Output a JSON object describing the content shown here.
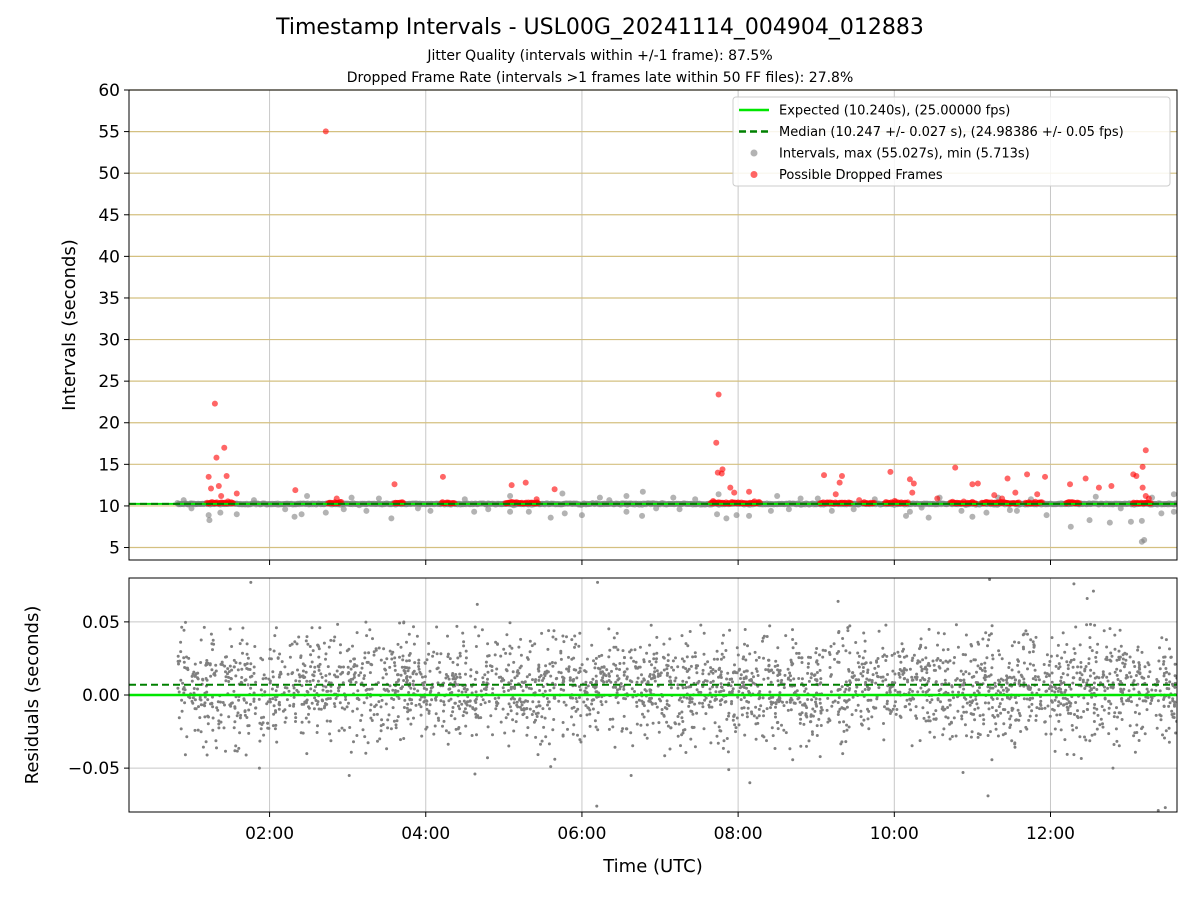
{
  "figure": {
    "title": "Timestamp Intervals - USL00G_20241114_004904_012883",
    "subtitle1": "Jitter Quality (intervals within +/-1 frame): 87.5%",
    "subtitle2": "Dropped Frame Rate (intervals >1 frames late within 50 FF files): 27.8%"
  },
  "colors": {
    "expected": "#00e600",
    "median": "#008000",
    "intervals": "#808080",
    "dropped": "#ff0000",
    "hgrid_top": "#d4c080",
    "grid": "#c8c8c8"
  },
  "chart_data": [
    {
      "type": "scatter",
      "panel": "intervals",
      "ylabel": "Intervals (seconds)",
      "ylim": [
        3.5,
        60
      ],
      "yticks": [
        5,
        10,
        15,
        20,
        25,
        30,
        35,
        40,
        45,
        50,
        55,
        60
      ],
      "ytick_labels": [
        "5",
        "10",
        "15",
        "20",
        "25",
        "30",
        "35",
        "40",
        "45",
        "50",
        "55",
        "60"
      ],
      "xlim_hours": [
        0.2,
        13.62
      ],
      "xticks_hours": [
        2,
        4,
        6,
        8,
        10,
        12
      ],
      "grid": true,
      "legend_placement": "upper right",
      "legend": [
        {
          "label": "Expected (10.240s), (25.00000 fps)",
          "kind": "solid-line",
          "color": "#00e600"
        },
        {
          "label": "Median (10.247 +/- 0.027 s), (24.98386 +/- 0.05 fps)",
          "kind": "dashed-line",
          "color": "#008000"
        },
        {
          "label": "Intervals, max (55.027s), min (5.713s)",
          "kind": "dot",
          "color": "#808080"
        },
        {
          "label": "Possible Dropped Frames",
          "kind": "dot",
          "color": "#ff0000"
        }
      ],
      "expected_value": 10.24,
      "median_value": 10.247,
      "series": [
        {
          "name": "Possible Dropped Frames",
          "points": [
            [
              2.72,
              55.03
            ],
            [
              1.3,
              22.3
            ],
            [
              7.75,
              23.4
            ],
            [
              1.42,
              17.0
            ],
            [
              7.72,
              17.6
            ],
            [
              13.22,
              16.7
            ],
            [
              1.32,
              15.8
            ],
            [
              7.8,
              14.4
            ],
            [
              7.74,
              14.0
            ],
            [
              7.79,
              13.9
            ],
            [
              10.78,
              14.6
            ],
            [
              9.95,
              14.1
            ],
            [
              11.7,
              13.8
            ],
            [
              13.18,
              14.7
            ],
            [
              1.22,
              13.5
            ],
            [
              1.45,
              13.6
            ],
            [
              4.22,
              13.5
            ],
            [
              9.1,
              13.7
            ],
            [
              9.33,
              13.6
            ],
            [
              10.2,
              13.2
            ],
            [
              11.45,
              13.3
            ],
            [
              11.93,
              13.5
            ],
            [
              12.45,
              13.3
            ],
            [
              13.06,
              13.8
            ],
            [
              13.1,
              13.6
            ],
            [
              1.25,
              12.1
            ],
            [
              1.35,
              12.4
            ],
            [
              2.33,
              11.9
            ],
            [
              3.6,
              12.6
            ],
            [
              5.1,
              12.5
            ],
            [
              5.28,
              12.8
            ],
            [
              5.65,
              12.0
            ],
            [
              7.9,
              12.2
            ],
            [
              9.3,
              12.8
            ],
            [
              10.25,
              12.7
            ],
            [
              11.0,
              12.6
            ],
            [
              11.07,
              12.7
            ],
            [
              12.25,
              12.6
            ],
            [
              12.62,
              12.2
            ],
            [
              12.78,
              12.4
            ],
            [
              13.18,
              12.2
            ],
            [
              9.25,
              11.4
            ],
            [
              10.23,
              11.6
            ],
            [
              11.28,
              11.3
            ],
            [
              11.55,
              11.6
            ],
            [
              11.83,
              11.4
            ],
            [
              1.38,
              11.2
            ],
            [
              1.58,
              11.5
            ],
            [
              7.95,
              11.6
            ],
            [
              8.14,
              11.7
            ],
            [
              13.22,
              11.2
            ],
            [
              2.86,
              10.9
            ],
            [
              5.42,
              10.8
            ],
            [
              7.68,
              10.6
            ],
            [
              9.55,
              10.7
            ],
            [
              10.55,
              10.9
            ],
            [
              11.38,
              10.9
            ],
            [
              13.26,
              10.9
            ]
          ],
          "clusters": [
            [
              1.2,
              1.55
            ],
            [
              2.75,
              2.92
            ],
            [
              3.6,
              3.72
            ],
            [
              4.2,
              4.37
            ],
            [
              5.02,
              5.45
            ],
            [
              7.65,
              8.28
            ],
            [
              9.05,
              9.45
            ],
            [
              9.6,
              9.75
            ],
            [
              9.88,
              10.18
            ],
            [
              10.72,
              11.05
            ],
            [
              11.12,
              11.6
            ],
            [
              11.68,
              11.9
            ],
            [
              12.2,
              12.38
            ],
            [
              13.05,
              13.3
            ]
          ]
        },
        {
          "name": "Intervals",
          "baseline_value": 10.24,
          "x_range_hours": [
            0.82,
            13.62
          ],
          "points": [
            [
              13.17,
              5.7
            ],
            [
              13.2,
              5.9
            ],
            [
              1.23,
              8.3
            ],
            [
              1.22,
              8.9
            ],
            [
              1.37,
              9.2
            ],
            [
              1.58,
              9.0
            ],
            [
              2.32,
              8.7
            ],
            [
              2.41,
              9.0
            ],
            [
              2.72,
              9.2
            ],
            [
              2.95,
              9.6
            ],
            [
              3.24,
              9.4
            ],
            [
              3.56,
              8.5
            ],
            [
              4.06,
              9.4
            ],
            [
              4.62,
              9.3
            ],
            [
              5.08,
              9.3
            ],
            [
              5.32,
              9.3
            ],
            [
              5.6,
              8.6
            ],
            [
              5.78,
              9.1
            ],
            [
              6.0,
              8.9
            ],
            [
              6.57,
              9.3
            ],
            [
              6.77,
              8.8
            ],
            [
              7.25,
              9.6
            ],
            [
              7.73,
              9.0
            ],
            [
              7.98,
              8.9
            ],
            [
              7.85,
              8.5
            ],
            [
              8.14,
              8.8
            ],
            [
              8.42,
              9.4
            ],
            [
              9.2,
              9.4
            ],
            [
              9.48,
              9.6
            ],
            [
              10.15,
              8.8
            ],
            [
              10.2,
              9.3
            ],
            [
              10.44,
              8.6
            ],
            [
              10.86,
              9.4
            ],
            [
              11.0,
              8.7
            ],
            [
              11.18,
              9.2
            ],
            [
              11.57,
              9.4
            ],
            [
              11.48,
              9.5
            ],
            [
              11.95,
              8.9
            ],
            [
              12.26,
              7.5
            ],
            [
              12.5,
              8.3
            ],
            [
              12.76,
              8.0
            ],
            [
              13.03,
              8.1
            ],
            [
              13.17,
              8.2
            ],
            [
              13.42,
              9.1
            ],
            [
              13.58,
              9.3
            ],
            [
              2.48,
              11.2
            ],
            [
              3.05,
              11.0
            ],
            [
              5.08,
              11.2
            ],
            [
              5.75,
              11.5
            ],
            [
              6.23,
              11.0
            ],
            [
              6.57,
              11.2
            ],
            [
              6.78,
              11.7
            ],
            [
              7.17,
              11.0
            ],
            [
              7.75,
              11.4
            ],
            [
              8.5,
              11.2
            ],
            [
              8.8,
              10.9
            ],
            [
              9.02,
              10.9
            ],
            [
              10.58,
              11.0
            ],
            [
              11.33,
              11.0
            ],
            [
              12.58,
              11.1
            ],
            [
              13.3,
              11.0
            ],
            [
              13.58,
              11.4
            ],
            [
              0.9,
              10.7
            ],
            [
              1.0,
              9.7
            ],
            [
              1.8,
              10.7
            ],
            [
              2.2,
              9.6
            ],
            [
              3.4,
              10.9
            ],
            [
              3.9,
              9.7
            ],
            [
              4.5,
              10.8
            ],
            [
              4.8,
              9.6
            ],
            [
              6.35,
              10.7
            ],
            [
              6.95,
              9.7
            ],
            [
              7.45,
              10.8
            ],
            [
              8.65,
              9.6
            ],
            [
              9.75,
              10.8
            ],
            [
              10.35,
              9.8
            ],
            [
              11.75,
              10.8
            ],
            [
              12.9,
              9.7
            ]
          ]
        }
      ]
    },
    {
      "type": "scatter",
      "panel": "residuals",
      "xlabel": "Time (UTC)",
      "ylabel": "Residuals (seconds)",
      "ylim": [
        -0.08,
        0.08
      ],
      "yticks": [
        -0.05,
        0.0,
        0.05
      ],
      "ytick_labels": [
        "−0.05",
        "0.00",
        "0.05"
      ],
      "xlim_hours": [
        0.2,
        13.62
      ],
      "xticks_hours": [
        2,
        4,
        6,
        8,
        10,
        12
      ],
      "xtick_labels": [
        "02:00",
        "04:00",
        "06:00",
        "08:00",
        "10:00",
        "12:00"
      ],
      "grid": true,
      "expected_value": 0.0,
      "median_value": 0.007,
      "series": [
        {
          "name": "Residuals",
          "x_range_hours": [
            0.82,
            13.62
          ],
          "approx_count": 3000,
          "mean": 0.005,
          "spread": [
            -0.045,
            0.05
          ],
          "outliers": [
            [
              1.76,
              0.077
            ],
            [
              6.2,
              0.077
            ],
            [
              12.3,
              0.076
            ],
            [
              11.22,
              0.079
            ],
            [
              12.55,
              0.071
            ],
            [
              4.66,
              0.062
            ],
            [
              9.28,
              0.064
            ],
            [
              12.47,
              0.066
            ],
            [
              1.2,
              -0.041
            ],
            [
              3.02,
              -0.055
            ],
            [
              4.63,
              -0.054
            ],
            [
              5.6,
              -0.049
            ],
            [
              6.19,
              -0.076
            ],
            [
              6.63,
              -0.055
            ],
            [
              7.88,
              -0.051
            ],
            [
              8.15,
              -0.06
            ],
            [
              10.88,
              -0.053
            ],
            [
              11.2,
              -0.069
            ],
            [
              12.8,
              -0.05
            ],
            [
              13.38,
              -0.079
            ],
            [
              13.47,
              -0.077
            ],
            [
              1.87,
              -0.05
            ],
            [
              1.7,
              -0.041
            ]
          ]
        }
      ]
    }
  ]
}
